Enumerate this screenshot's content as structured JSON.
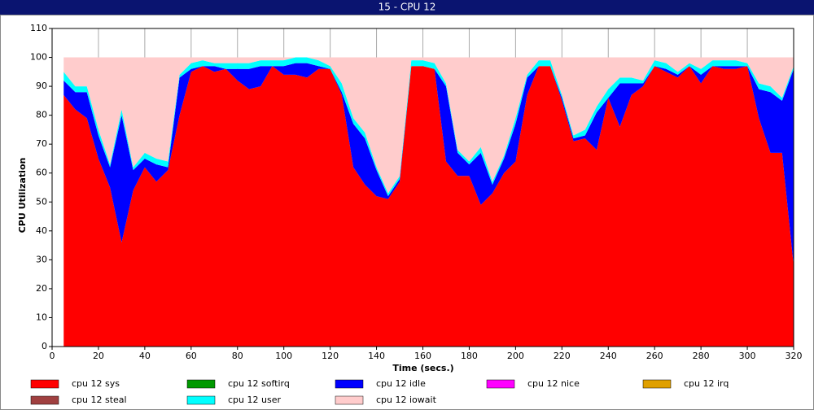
{
  "chart_data": {
    "type": "area",
    "stacked": true,
    "grid": true,
    "title": "15 - CPU 12",
    "x_label": "Time (secs.)",
    "y_label": "CPU Utilization",
    "xlim": [
      0,
      320
    ],
    "ylim": [
      0,
      110
    ],
    "xticks": [
      0,
      20,
      40,
      60,
      80,
      100,
      120,
      140,
      160,
      180,
      200,
      220,
      240,
      260,
      280,
      300,
      320
    ],
    "yticks": [
      0,
      10,
      20,
      30,
      40,
      50,
      60,
      70,
      80,
      90,
      100,
      110
    ],
    "x": [
      5,
      10,
      15,
      20,
      25,
      30,
      35,
      40,
      45,
      50,
      55,
      60,
      65,
      70,
      75,
      80,
      85,
      90,
      95,
      100,
      105,
      110,
      115,
      120,
      125,
      130,
      135,
      140,
      145,
      150,
      155,
      160,
      165,
      170,
      175,
      180,
      185,
      190,
      195,
      200,
      205,
      210,
      215,
      220,
      225,
      230,
      235,
      240,
      245,
      250,
      255,
      260,
      265,
      270,
      275,
      280,
      285,
      290,
      295,
      300,
      305,
      310,
      315,
      320
    ],
    "series": [
      {
        "name": "cpu 12 sys",
        "color": "#ff0000",
        "values": [
          87,
          82,
          79,
          65,
          55,
          36,
          54,
          62,
          57,
          61,
          80,
          95,
          97,
          95,
          96,
          92,
          89,
          90,
          97,
          94,
          94,
          93,
          96,
          96,
          87,
          62,
          56,
          52,
          51,
          57,
          97,
          97,
          96,
          64,
          59,
          59,
          49,
          53,
          60,
          64,
          87,
          97,
          97,
          85,
          71,
          72,
          68,
          86,
          76,
          87,
          90,
          97,
          95,
          93,
          97,
          91,
          97,
          96,
          96,
          97,
          79,
          67,
          67,
          28
        ]
      },
      {
        "name": "cpu 12 softirq",
        "color": "#009900",
        "values": [
          0,
          0,
          0,
          0,
          0,
          0,
          0,
          0,
          0,
          0,
          0,
          0,
          0,
          0,
          0,
          0,
          0,
          0,
          0,
          0,
          0,
          0,
          0,
          0,
          0,
          0,
          0,
          0,
          0,
          0,
          0,
          0,
          0,
          0,
          0,
          0,
          0,
          0,
          0,
          0,
          0,
          0,
          0,
          0,
          0,
          0,
          0,
          0,
          0,
          0,
          0,
          0,
          0,
          0,
          0,
          0,
          0,
          0,
          0,
          0,
          0,
          0,
          0,
          0
        ]
      },
      {
        "name": "cpu 12 idle",
        "color": "#0000ff",
        "values": [
          5,
          6,
          9,
          8,
          7,
          44,
          7,
          3,
          6,
          1,
          13,
          1,
          0,
          2,
          0,
          4,
          7,
          7,
          0,
          3,
          4,
          5,
          1,
          0,
          1,
          15,
          16,
          9,
          1,
          1,
          0,
          0,
          0,
          26,
          8,
          4,
          18,
          3,
          5,
          13,
          6,
          0,
          0,
          1,
          1,
          1,
          13,
          0,
          15,
          4,
          1,
          0,
          1,
          1,
          0,
          3,
          0,
          1,
          1,
          0,
          10,
          21,
          18,
          68
        ]
      },
      {
        "name": "cpu 12 nice",
        "color": "#ff00ff",
        "values": [
          0,
          0,
          0,
          0,
          0,
          0,
          0,
          0,
          0,
          0,
          0,
          0,
          0,
          0,
          0,
          0,
          0,
          0,
          0,
          0,
          0,
          0,
          0,
          0,
          0,
          0,
          0,
          0,
          0,
          0,
          0,
          0,
          0,
          0,
          0,
          0,
          0,
          0,
          0,
          0,
          0,
          0,
          0,
          0,
          0,
          0,
          0,
          0,
          0,
          0,
          0,
          0,
          0,
          0,
          0,
          0,
          0,
          0,
          0,
          0,
          0,
          0,
          0,
          0
        ]
      },
      {
        "name": "cpu 12 irq",
        "color": "#e0a000",
        "values": [
          0,
          0,
          0,
          0,
          0,
          0,
          0,
          0,
          0,
          0,
          0,
          0,
          0,
          0,
          0,
          0,
          0,
          0,
          0,
          0,
          0,
          0,
          0,
          0,
          0,
          0,
          0,
          0,
          0,
          0,
          0,
          0,
          0,
          0,
          0,
          0,
          0,
          0,
          0,
          0,
          0,
          0,
          0,
          0,
          0,
          0,
          0,
          0,
          0,
          0,
          0,
          0,
          0,
          0,
          0,
          0,
          0,
          0,
          0,
          0,
          0,
          0,
          0,
          0
        ]
      },
      {
        "name": "cpu 12 steal",
        "color": "#a04040",
        "values": [
          0,
          0,
          0,
          0,
          0,
          0,
          0,
          0,
          0,
          0,
          0,
          0,
          0,
          0,
          0,
          0,
          0,
          0,
          0,
          0,
          0,
          0,
          0,
          0,
          0,
          0,
          0,
          0,
          0,
          0,
          0,
          0,
          0,
          0,
          0,
          0,
          0,
          0,
          0,
          0,
          0,
          0,
          0,
          0,
          0,
          0,
          0,
          0,
          0,
          0,
          0,
          0,
          0,
          0,
          0,
          0,
          0,
          0,
          0,
          0,
          0,
          0,
          0,
          0
        ]
      },
      {
        "name": "cpu 12 user",
        "color": "#00ffff",
        "values": [
          3,
          2,
          2,
          2,
          1,
          2,
          1,
          2,
          2,
          2,
          1,
          2,
          2,
          1,
          2,
          2,
          2,
          2,
          2,
          2,
          2,
          2,
          2,
          1,
          3,
          2,
          2,
          1,
          1,
          1,
          2,
          2,
          2,
          1,
          1,
          1,
          2,
          1,
          1,
          2,
          1,
          2,
          2,
          1,
          1,
          2,
          2,
          3,
          2,
          2,
          1,
          2,
          2,
          1,
          1,
          2,
          2,
          2,
          2,
          1,
          2,
          2,
          1,
          1
        ]
      },
      {
        "name": "cpu 12 iowait",
        "color": "#ffcccc",
        "values": [
          5,
          10,
          10,
          25,
          37,
          18,
          38,
          33,
          35,
          36,
          6,
          2,
          1,
          2,
          2,
          2,
          2,
          1,
          1,
          1,
          0,
          0,
          1,
          3,
          9,
          21,
          26,
          38,
          47,
          41,
          1,
          1,
          2,
          9,
          32,
          36,
          31,
          43,
          34,
          21,
          6,
          1,
          1,
          13,
          27,
          25,
          17,
          11,
          7,
          7,
          8,
          1,
          2,
          5,
          2,
          4,
          1,
          1,
          1,
          2,
          9,
          10,
          14,
          3
        ]
      }
    ]
  }
}
